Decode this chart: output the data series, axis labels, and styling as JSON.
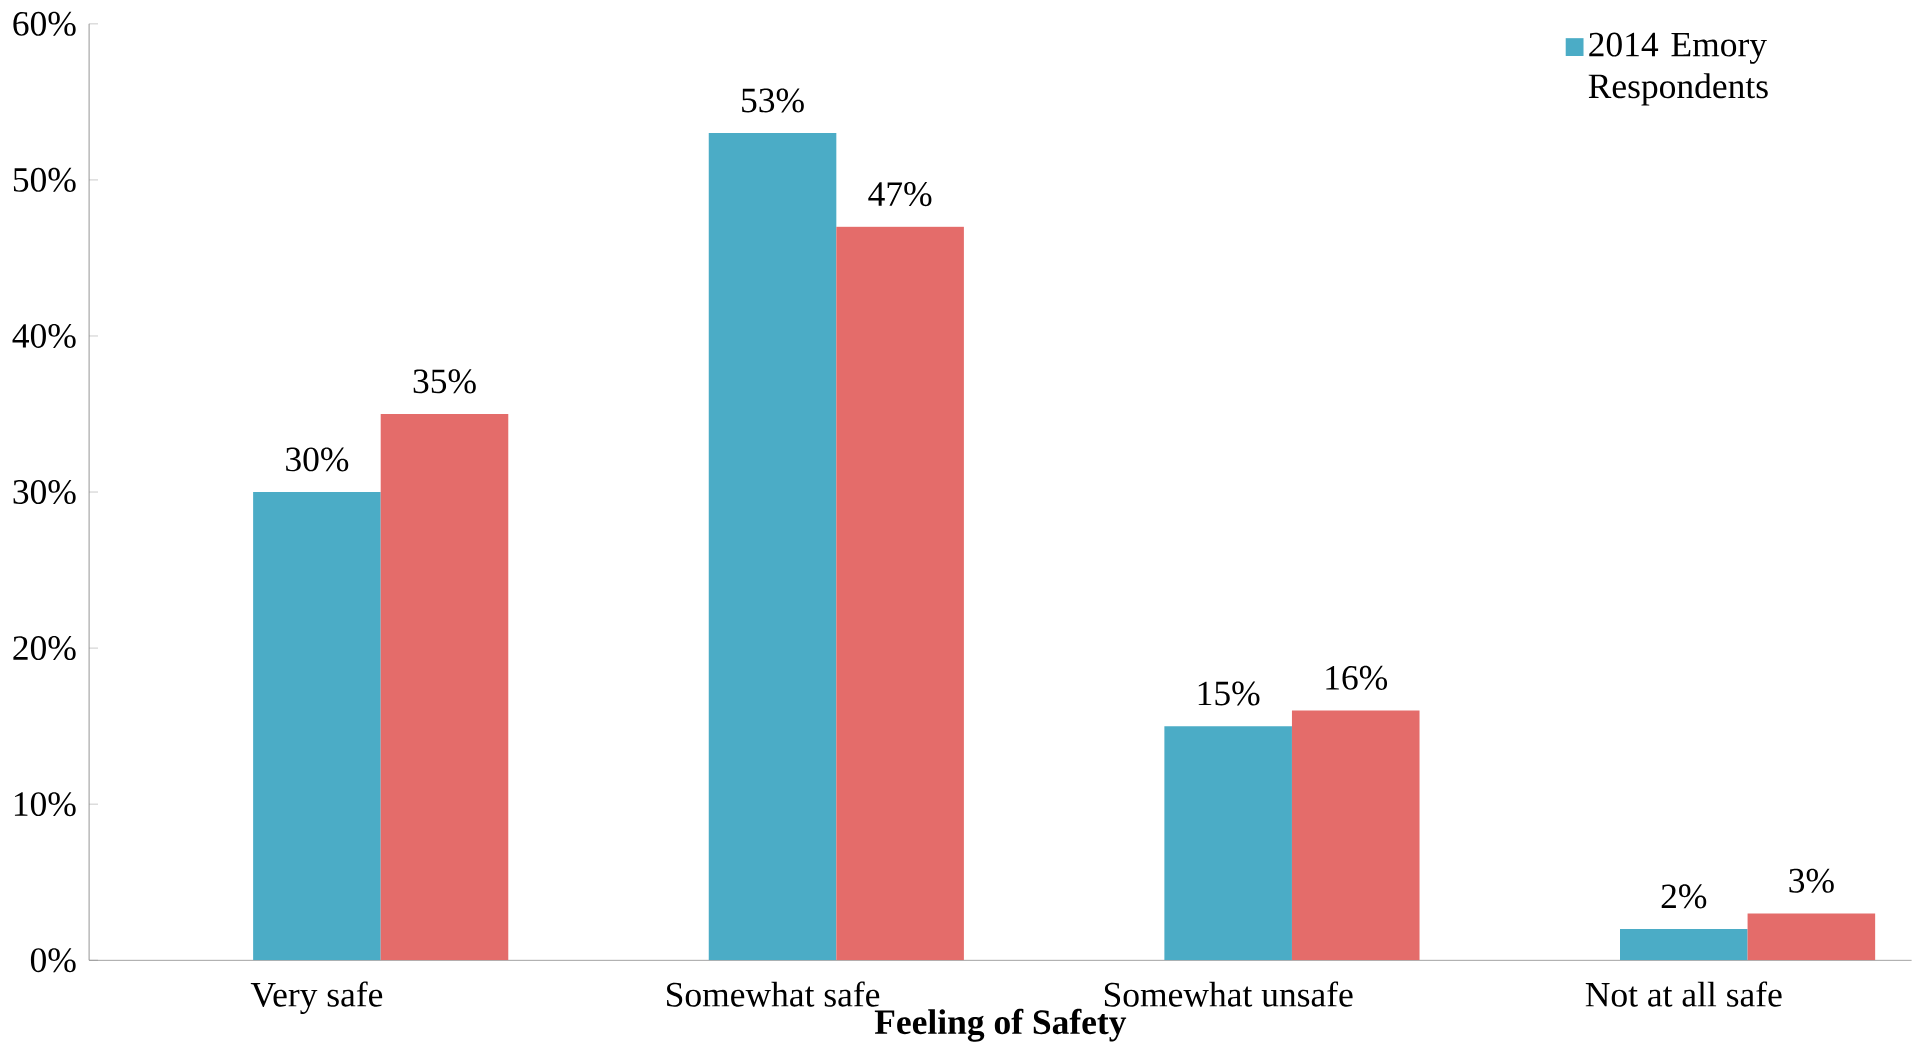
{
  "chart_data": {
    "type": "bar",
    "xlabel": "Feeling of Safety",
    "categories": [
      "Very safe",
      "Somewhat safe",
      "Somewhat unsafe",
      "Not at all safe"
    ],
    "series": [
      {
        "name": "2014 Emory Respondents",
        "color": "#4bacc6",
        "values": [
          30,
          53,
          15,
          2
        ],
        "value_labels": [
          "30%",
          "53%",
          "15%",
          "2%"
        ]
      },
      {
        "color": "#e46c6a",
        "values": [
          35,
          47,
          16,
          3
        ],
        "value_labels": [
          "35%",
          "47%",
          "16%",
          "3%"
        ]
      }
    ],
    "ylim": [
      0,
      60
    ],
    "yticks": [
      {
        "value": 0,
        "label": "0%"
      },
      {
        "value": 10,
        "label": "10%"
      },
      {
        "value": 20,
        "label": "20%"
      },
      {
        "value": 30,
        "label": "30%"
      },
      {
        "value": 40,
        "label": "40%"
      },
      {
        "value": 50,
        "label": "50%"
      },
      {
        "value": 60,
        "label": "60%"
      }
    ],
    "legend": "top right",
    "grid": false
  }
}
